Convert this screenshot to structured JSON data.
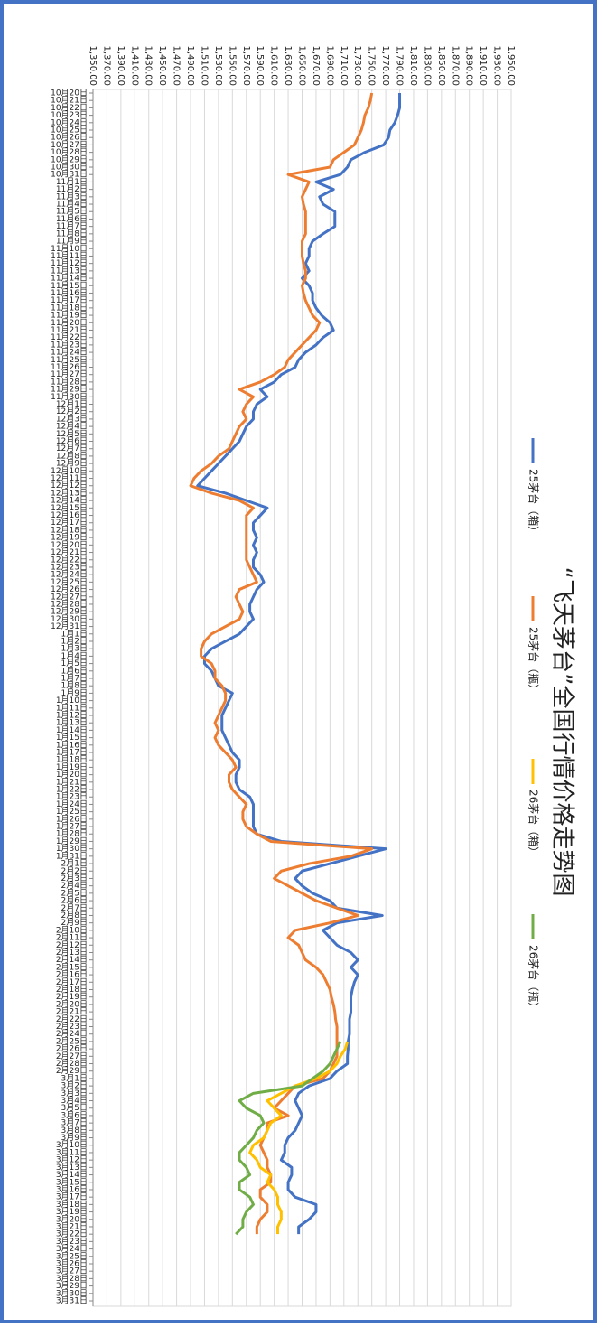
{
  "chart_data": {
    "type": "line",
    "title": "“飞天茅台”全国行情价格走势图",
    "categories": [
      "10月20日",
      "10月21日",
      "10月22日",
      "10月23日",
      "10月24日",
      "10月25日",
      "10月26日",
      "10月27日",
      "10月28日",
      "10月29日",
      "10月30日",
      "10月31日",
      "11月1日",
      "11月2日",
      "11月3日",
      "11月4日",
      "11月5日",
      "11月6日",
      "11月7日",
      "11月8日",
      "11月9日",
      "11月10日",
      "11月11日",
      "11月12日",
      "11月13日",
      "11月14日",
      "11月15日",
      "11月16日",
      "11月17日",
      "11月18日",
      "11月19日",
      "11月20日",
      "11月21日",
      "11月22日",
      "11月23日",
      "11月24日",
      "11月25日",
      "11月26日",
      "11月27日",
      "11月28日",
      "11月29日",
      "11月30日",
      "12月1日",
      "12月2日",
      "12月3日",
      "12月4日",
      "12月5日",
      "12月6日",
      "12月7日",
      "12月8日",
      "12月9日",
      "12月10日",
      "12月11日",
      "12月12日",
      "12月13日",
      "12月14日",
      "12月15日",
      "12月16日",
      "12月17日",
      "12月18日",
      "12月19日",
      "12月20日",
      "12月21日",
      "12月22日",
      "12月23日",
      "12月24日",
      "12月25日",
      "12月26日",
      "12月27日",
      "12月28日",
      "12月29日",
      "12月30日",
      "12月31日",
      "1月1日",
      "1月2日",
      "1月3日",
      "1月4日",
      "1月5日",
      "1月6日",
      "1月7日",
      "1月8日",
      "1月9日",
      "1月10日",
      "1月11日",
      "1月12日",
      "1月13日",
      "1月14日",
      "1月15日",
      "1月16日",
      "1月17日",
      "1月18日",
      "1月19日",
      "1月20日",
      "1月21日",
      "1月22日",
      "1月23日",
      "1月24日",
      "1月25日",
      "1月26日",
      "1月27日",
      "1月28日",
      "1月29日",
      "1月30日",
      "1月31日",
      "2月1日",
      "2月2日",
      "2月3日",
      "2月4日",
      "2月5日",
      "2月6日",
      "2月7日",
      "2月8日",
      "2月9日",
      "2月10日",
      "2月11日",
      "2月12日",
      "2月13日",
      "2月14日",
      "2月15日",
      "2月16日",
      "2月17日",
      "2月18日",
      "2月19日",
      "2月20日",
      "2月21日",
      "2月22日",
      "2月23日",
      "2月24日",
      "2月25日",
      "2月26日",
      "2月27日",
      "2月28日",
      "2月29日",
      "3月1日",
      "3月2日",
      "3月3日",
      "3月4日",
      "3月5日",
      "3月6日",
      "3月7日",
      "3月8日",
      "3月9日",
      "3月10日",
      "3月11日",
      "3月12日",
      "3月13日",
      "3月14日",
      "3月15日",
      "3月16日",
      "3月17日",
      "3月18日",
      "3月19日",
      "3月20日",
      "3月21日",
      "3月22日",
      "3月23日",
      "3月24日",
      "3月25日",
      "3月26日",
      "3月27日",
      "3月28日",
      "3月29日",
      "3月30日",
      "3月31日"
    ],
    "series": [
      {
        "name": "25茅台（箱）",
        "color": "#4472c4",
        "values": [
          1790,
          1790,
          1790,
          1787,
          1783,
          1776,
          1774,
          1767,
          1740,
          1720,
          1715,
          1705,
          1670,
          1695,
          1675,
          1680,
          1697,
          1697,
          1697,
          1680,
          1665,
          1660,
          1660,
          1655,
          1660,
          1650,
          1660,
          1665,
          1665,
          1670,
          1678,
          1690,
          1695,
          1680,
          1670,
          1655,
          1645,
          1640,
          1620,
          1610,
          1590,
          1600,
          1585,
          1580,
          1580,
          1570,
          1565,
          1560,
          1550,
          1540,
          1530,
          1520,
          1510,
          1500,
          1540,
          1570,
          1600,
          1590,
          1580,
          1580,
          1585,
          1580,
          1585,
          1580,
          1580,
          1590,
          1595,
          1585,
          1580,
          1575,
          1575,
          1580,
          1570,
          1560,
          1540,
          1520,
          1510,
          1510,
          1520,
          1525,
          1530,
          1550,
          1545,
          1540,
          1535,
          1535,
          1535,
          1540,
          1545,
          1550,
          1560,
          1560,
          1555,
          1555,
          1560,
          1575,
          1580,
          1580,
          1580,
          1580,
          1585,
          1620,
          1770,
          1730,
          1690,
          1650,
          1640,
          1650,
          1665,
          1690,
          1700,
          1765,
          1700,
          1680,
          1690,
          1700,
          1720,
          1730,
          1720,
          1730,
          1725,
          1722,
          1720,
          1720,
          1720,
          1718,
          1718,
          1718,
          1716,
          1716,
          1715,
          1715,
          1700,
          1690,
          1660,
          1645,
          1640,
          1645,
          1650,
          1645,
          1640,
          1630,
          1625,
          1625,
          1620,
          1635,
          1635,
          1630,
          1630,
          1640,
          1670,
          1670,
          1660,
          1645,
          1645,
          null,
          null,
          null,
          null,
          null,
          null,
          null,
          null,
          null
        ]
      },
      {
        "name": "25茅台（瓶）",
        "color": "#ed7d31",
        "values": [
          1750,
          1748,
          1745,
          1740,
          1738,
          1735,
          1730,
          1725,
          1710,
          1695,
          1690,
          1630,
          1660,
          1655,
          1650,
          1652,
          1655,
          1655,
          1655,
          1655,
          1650,
          1650,
          1650,
          1652,
          1655,
          1655,
          1650,
          1652,
          1655,
          1660,
          1665,
          1675,
          1670,
          1660,
          1650,
          1640,
          1630,
          1625,
          1610,
          1590,
          1560,
          1580,
          1570,
          1565,
          1570,
          1560,
          1555,
          1550,
          1545,
          1530,
          1520,
          1505,
          1495,
          1490,
          1520,
          1560,
          1580,
          1570,
          1570,
          1570,
          1570,
          1570,
          1570,
          1570,
          1575,
          1580,
          1585,
          1560,
          1555,
          1560,
          1565,
          1560,
          1540,
          1520,
          1510,
          1505,
          1505,
          1520,
          1525,
          1525,
          1535,
          1540,
          1540,
          1535,
          1530,
          1525,
          1530,
          1525,
          1530,
          1540,
          1550,
          1555,
          1545,
          1545,
          1550,
          1560,
          1570,
          1565,
          1565,
          1570,
          1585,
          1605,
          1750,
          1720,
          1660,
          1620,
          1610,
          1630,
          1650,
          1670,
          1700,
          1730,
          1690,
          1640,
          1630,
          1645,
          1650,
          1655,
          1670,
          1680,
          1685,
          1690,
          1692,
          1695,
          1697,
          1698,
          1700,
          1700,
          1700,
          1700,
          1700,
          1695,
          1690,
          1680,
          1640,
          1630,
          1620,
          1610,
          1630,
          1600,
          1600,
          1595,
          1590,
          1595,
          1600,
          1600,
          1605,
          1605,
          1590,
          1590,
          1600,
          1600,
          1590,
          1585,
          1585,
          null,
          null,
          null,
          null,
          null,
          null,
          null,
          null,
          null
        ]
      },
      {
        "name": "26茅台（箱）",
        "color": "#ffc000",
        "values": [
          null,
          null,
          null,
          null,
          null,
          null,
          null,
          null,
          null,
          null,
          null,
          null,
          null,
          null,
          null,
          null,
          null,
          null,
          null,
          null,
          null,
          null,
          null,
          null,
          null,
          null,
          null,
          null,
          null,
          null,
          null,
          null,
          null,
          null,
          null,
          null,
          null,
          null,
          null,
          null,
          null,
          null,
          null,
          null,
          null,
          null,
          null,
          null,
          null,
          null,
          null,
          null,
          null,
          null,
          null,
          null,
          null,
          null,
          null,
          null,
          null,
          null,
          null,
          null,
          null,
          null,
          null,
          null,
          null,
          null,
          null,
          null,
          null,
          null,
          null,
          null,
          null,
          null,
          null,
          null,
          null,
          null,
          null,
          null,
          null,
          null,
          null,
          null,
          null,
          null,
          null,
          null,
          null,
          null,
          null,
          null,
          null,
          null,
          null,
          null,
          null,
          null,
          null,
          null,
          null,
          null,
          null,
          null,
          null,
          null,
          null,
          null,
          null,
          null,
          null,
          null,
          null,
          null,
          null,
          null,
          null,
          null,
          null,
          null,
          null,
          null,
          null,
          null,
          1715,
          1712,
          1705,
          1700,
          1690,
          1670,
          1640,
          1620,
          1600,
          1610,
          1620,
          1605,
          1600,
          1595,
          1580,
          1575,
          1585,
          1590,
          1605,
          1600,
          1610,
          1615,
          1615,
          1620,
          1620,
          1615,
          1615,
          null,
          null,
          null,
          null,
          null,
          null,
          null,
          null,
          null
        ]
      },
      {
        "name": "26茅台（瓶）",
        "color": "#70ad47",
        "values": [
          null,
          null,
          null,
          null,
          null,
          null,
          null,
          null,
          null,
          null,
          null,
          null,
          null,
          null,
          null,
          null,
          null,
          null,
          null,
          null,
          null,
          null,
          null,
          null,
          null,
          null,
          null,
          null,
          null,
          null,
          null,
          null,
          null,
          null,
          null,
          null,
          null,
          null,
          null,
          null,
          null,
          null,
          null,
          null,
          null,
          null,
          null,
          null,
          null,
          null,
          null,
          null,
          null,
          null,
          null,
          null,
          null,
          null,
          null,
          null,
          null,
          null,
          null,
          null,
          null,
          null,
          null,
          null,
          null,
          null,
          null,
          null,
          null,
          null,
          null,
          null,
          null,
          null,
          null,
          null,
          null,
          null,
          null,
          null,
          null,
          null,
          null,
          null,
          null,
          null,
          null,
          null,
          null,
          null,
          null,
          null,
          null,
          null,
          null,
          null,
          null,
          null,
          null,
          null,
          null,
          null,
          null,
          null,
          null,
          null,
          null,
          null,
          null,
          null,
          null,
          null,
          null,
          null,
          null,
          null,
          null,
          null,
          null,
          null,
          null,
          null,
          null,
          null,
          1705,
          1700,
          1695,
          1690,
          1680,
          1665,
          1650,
          1580,
          1560,
          1570,
          1590,
          1595,
          1585,
          1580,
          1570,
          1560,
          1560,
          1570,
          1575,
          1560,
          1560,
          1575,
          1580,
          1570,
          1565,
          1565,
          1555,
          null,
          null,
          null,
          null,
          null,
          null,
          null,
          null,
          null
        ]
      }
    ],
    "ylim": [
      1350,
      1950
    ],
    "yticks": [
      {
        "value": 1350,
        "label": "1,350.00"
      },
      {
        "value": 1370,
        "label": "1,370.00"
      },
      {
        "value": 1390,
        "label": "1,390.00"
      },
      {
        "value": 1410,
        "label": "1,410.00"
      },
      {
        "value": 1430,
        "label": "1,430.00"
      },
      {
        "value": 1450,
        "label": "1,450.00"
      },
      {
        "value": 1470,
        "label": "1,470.00"
      },
      {
        "value": 1490,
        "label": "1,490.00"
      },
      {
        "value": 1510,
        "label": "1,510.00"
      },
      {
        "value": 1530,
        "label": "1,530.00"
      },
      {
        "value": 1550,
        "label": "1,550.00"
      },
      {
        "value": 1570,
        "label": "1,570.00"
      },
      {
        "value": 1590,
        "label": "1,590.00"
      },
      {
        "value": 1610,
        "label": "1,610.00"
      },
      {
        "value": 1630,
        "label": "1,630.00"
      },
      {
        "value": 1650,
        "label": "1,650.00"
      },
      {
        "value": 1670,
        "label": "1,670.00"
      },
      {
        "value": 1690,
        "label": "1,690.00"
      },
      {
        "value": 1710,
        "label": "1,710.00"
      },
      {
        "value": 1730,
        "label": "1,730.00"
      },
      {
        "value": 1750,
        "label": "1,750.00"
      },
      {
        "value": 1770,
        "label": "1,770.00"
      },
      {
        "value": 1790,
        "label": "1,790.00"
      },
      {
        "value": 1810,
        "label": "1,810.00"
      },
      {
        "value": 1830,
        "label": "1,830.00"
      },
      {
        "value": 1850,
        "label": "1,850.00"
      },
      {
        "value": 1870,
        "label": "1,870.00"
      },
      {
        "value": 1890,
        "label": "1,890.00"
      },
      {
        "value": 1910,
        "label": "1,910.00"
      },
      {
        "value": 1930,
        "label": "1,930.00"
      },
      {
        "value": 1950,
        "label": "1,950.00"
      }
    ],
    "grid": true,
    "legend": "right"
  }
}
